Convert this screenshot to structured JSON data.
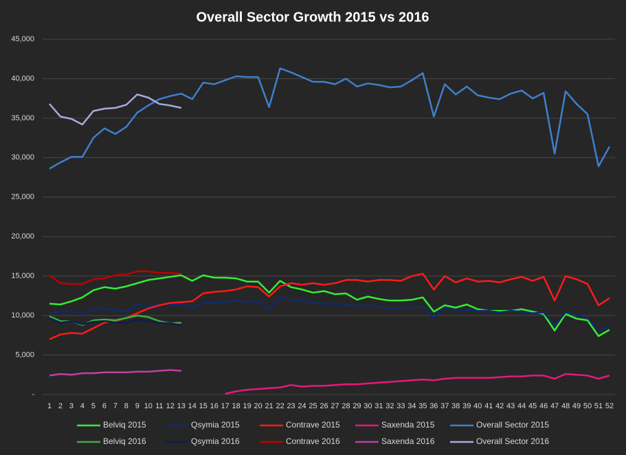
{
  "chart_data": {
    "type": "line",
    "title": "Overall Sector Growth 2015 vs 2016",
    "categories": [
      1,
      2,
      3,
      4,
      5,
      6,
      7,
      8,
      9,
      10,
      11,
      12,
      13,
      14,
      15,
      16,
      17,
      18,
      19,
      20,
      21,
      22,
      23,
      24,
      25,
      26,
      27,
      28,
      29,
      30,
      31,
      32,
      33,
      34,
      35,
      36,
      37,
      38,
      39,
      40,
      41,
      42,
      43,
      44,
      45,
      46,
      47,
      48,
      49,
      50,
      51,
      52
    ],
    "ylim": [
      0,
      45000
    ],
    "yticks": [
      {
        "value": 0,
        "label": "-"
      },
      {
        "value": 5000,
        "label": "5,000"
      },
      {
        "value": 10000,
        "label": "10,000"
      },
      {
        "value": 15000,
        "label": "15,000"
      },
      {
        "value": 20000,
        "label": "20,000"
      },
      {
        "value": 25000,
        "label": "25,000"
      },
      {
        "value": 30000,
        "label": "30,000"
      },
      {
        "value": 35000,
        "label": "35,000"
      },
      {
        "value": 40000,
        "label": "40,000"
      },
      {
        "value": 45000,
        "label": "45,000"
      }
    ],
    "grid": true,
    "legend": "bottom",
    "series": [
      {
        "name": "Belviq 2015",
        "color": "#33ee33",
        "values": [
          11500,
          11400,
          11800,
          12300,
          13200,
          13600,
          13400,
          13700,
          14100,
          14500,
          14700,
          14900,
          15100,
          14400,
          15100,
          14800,
          14800,
          14700,
          14300,
          14300,
          12900,
          14400,
          13600,
          13300,
          12900,
          13100,
          12700,
          12800,
          12000,
          12400,
          12100,
          11900,
          11900,
          12000,
          12300,
          10500,
          11300,
          11000,
          11400,
          10800,
          10600,
          10600,
          10600,
          10800,
          10500,
          10200,
          8100,
          10200,
          9600,
          9400,
          7400,
          8200
        ]
      },
      {
        "name": "Qsymia 2015",
        "color": "#0f2a6e",
        "values": [
          10200,
          10500,
          10600,
          10200,
          10800,
          10900,
          10600,
          10500,
          11400,
          11200,
          11400,
          11400,
          11400,
          11000,
          11600,
          11600,
          11700,
          11900,
          11700,
          11900,
          10700,
          12300,
          12000,
          11900,
          11600,
          11500,
          11500,
          11400,
          11200,
          11300,
          11100,
          10900,
          11000,
          11000,
          11100,
          9700,
          11000,
          10700,
          10700,
          10600,
          10600,
          10400,
          10600,
          10500,
          10300,
          10400,
          8700,
          10400,
          10100,
          9700,
          8100,
          8600
        ]
      },
      {
        "name": "Contrave 2015",
        "color": "#ff1a1a",
        "values": [
          7000,
          7600,
          7800,
          7700,
          8400,
          9100,
          9300,
          9700,
          10300,
          10900,
          11300,
          11600,
          11700,
          11800,
          12800,
          13000,
          13100,
          13300,
          13700,
          13600,
          12400,
          13700,
          14100,
          13900,
          14100,
          13900,
          14100,
          14500,
          14500,
          14300,
          14500,
          14500,
          14400,
          15000,
          15300,
          13300,
          15000,
          14200,
          14700,
          14300,
          14400,
          14200,
          14600,
          14900,
          14400,
          14900,
          11900,
          15000,
          14600,
          14000,
          11300,
          12200
        ]
      },
      {
        "name": "Saxenda 2015",
        "color": "#e6197a",
        "values": [
          null,
          null,
          null,
          null,
          null,
          null,
          null,
          null,
          null,
          null,
          null,
          null,
          null,
          null,
          null,
          null,
          100,
          400,
          600,
          700,
          800,
          900,
          1200,
          1000,
          1100,
          1100,
          1200,
          1300,
          1300,
          1400,
          1500,
          1600,
          1700,
          1800,
          1900,
          1800,
          2000,
          2100,
          2100,
          2100,
          2100,
          2200,
          2300,
          2300,
          2400,
          2400,
          2000,
          2600,
          2500,
          2400,
          2000,
          2400
        ]
      },
      {
        "name": "Overall Sector 2015",
        "color": "#3f7fcc",
        "values": [
          28600,
          29400,
          30100,
          30100,
          32500,
          33700,
          33000,
          33900,
          35700,
          36600,
          37400,
          37800,
          38100,
          37400,
          39500,
          39300,
          39800,
          40300,
          40200,
          40200,
          36400,
          41300,
          40800,
          40200,
          39600,
          39600,
          39300,
          40000,
          39000,
          39400,
          39200,
          38900,
          39000,
          39800,
          40700,
          35200,
          39300,
          38000,
          39000,
          37900,
          37600,
          37400,
          38100,
          38500,
          37500,
          38200,
          30500,
          38400,
          36800,
          35500,
          28900,
          31400
        ]
      },
      {
        "name": "Belviq 2016",
        "color": "#3fae3f",
        "values": [
          9900,
          9300,
          9300,
          8800,
          9400,
          9500,
          9400,
          9700,
          10000,
          9800,
          9300,
          9000,
          9100,
          null,
          null,
          null,
          null,
          null,
          null,
          null,
          null,
          null,
          null,
          null,
          null,
          null,
          null,
          null,
          null,
          null,
          null,
          null,
          null,
          null,
          null,
          null,
          null,
          null,
          null,
          null,
          null,
          null,
          null,
          null,
          null,
          null,
          null,
          null,
          null,
          null,
          null,
          null
        ]
      },
      {
        "name": "Qsymia 2016",
        "color": "#0b1d4f",
        "values": [
          9700,
          9100,
          9300,
          8900,
          9200,
          9300,
          9100,
          9100,
          9500,
          9300,
          9100,
          9000,
          8800,
          null,
          null,
          null,
          null,
          null,
          null,
          null,
          null,
          null,
          null,
          null,
          null,
          null,
          null,
          null,
          null,
          null,
          null,
          null,
          null,
          null,
          null,
          null,
          null,
          null,
          null,
          null,
          null,
          null,
          null,
          null,
          null,
          null,
          null,
          null,
          null,
          null,
          null,
          null
        ]
      },
      {
        "name": "Contrave 2016",
        "color": "#c00000",
        "values": [
          15100,
          14100,
          14000,
          14000,
          14600,
          14700,
          15100,
          15200,
          15600,
          15600,
          15400,
          15400,
          15300,
          null,
          null,
          null,
          null,
          null,
          null,
          null,
          null,
          null,
          null,
          null,
          null,
          null,
          null,
          null,
          null,
          null,
          null,
          null,
          null,
          null,
          null,
          null,
          null,
          null,
          null,
          null,
          null,
          null,
          null,
          null,
          null,
          null,
          null,
          null,
          null,
          null,
          null,
          null
        ]
      },
      {
        "name": "Saxenda 2016",
        "color": "#c040a0",
        "values": [
          2400,
          2600,
          2500,
          2700,
          2700,
          2800,
          2800,
          2800,
          2900,
          2900,
          3000,
          3100,
          3000,
          null,
          null,
          null,
          null,
          null,
          null,
          null,
          null,
          null,
          null,
          null,
          null,
          null,
          null,
          null,
          null,
          null,
          null,
          null,
          null,
          null,
          null,
          null,
          null,
          null,
          null,
          null,
          null,
          null,
          null,
          null,
          null,
          null,
          null,
          null,
          null,
          null,
          null,
          null
        ]
      },
      {
        "name": "Overall Sector 2016",
        "color": "#a9a9e0",
        "values": [
          36800,
          35200,
          34900,
          34200,
          35900,
          36200,
          36300,
          36700,
          38000,
          37600,
          36800,
          36600,
          36300,
          null,
          null,
          null,
          null,
          null,
          null,
          null,
          null,
          null,
          null,
          null,
          null,
          null,
          null,
          null,
          null,
          null,
          null,
          null,
          null,
          null,
          null,
          null,
          null,
          null,
          null,
          null,
          null,
          null,
          null,
          null,
          null,
          null,
          null,
          null,
          null,
          null,
          null,
          null
        ]
      }
    ]
  }
}
